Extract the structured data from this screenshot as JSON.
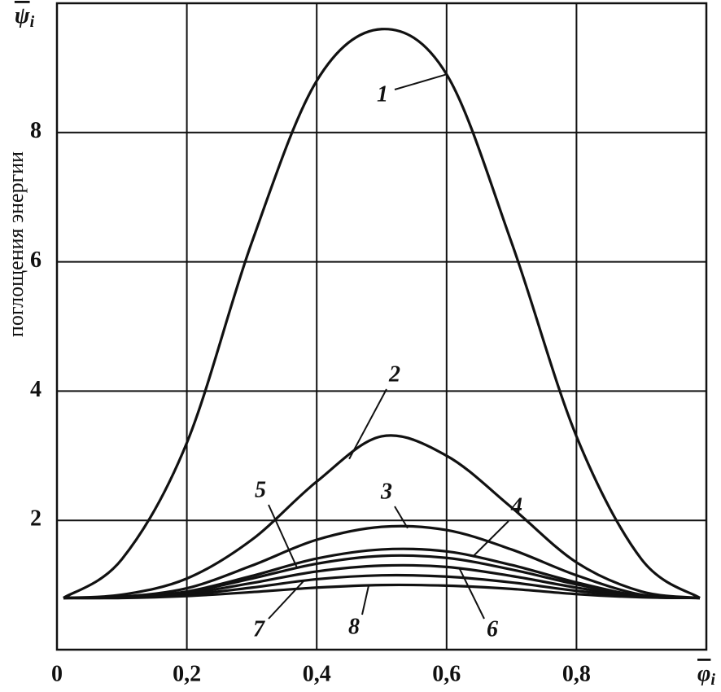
{
  "chart_data": {
    "type": "line",
    "y_symbol": "ψ",
    "y_symbol_sub": "i",
    "x_symbol": "φ",
    "x_symbol_sub": "i",
    "y_label": "поглощения энергии",
    "x": [
      0.01,
      0.1,
      0.2,
      0.3,
      0.4,
      0.5,
      0.6,
      0.7,
      0.8,
      0.9,
      0.99
    ],
    "series": [
      {
        "name": "1",
        "color": "#111111",
        "values": [
          0.8,
          1.4,
          3.2,
          6.3,
          8.8,
          9.6,
          8.9,
          6.3,
          3.3,
          1.4,
          0.8
        ]
      },
      {
        "name": "2",
        "color": "#111111",
        "values": [
          0.8,
          0.85,
          1.1,
          1.7,
          2.6,
          3.3,
          3.0,
          2.2,
          1.35,
          0.9,
          0.8
        ]
      },
      {
        "name": "3",
        "color": "#111111",
        "values": [
          0.8,
          0.82,
          0.95,
          1.3,
          1.7,
          1.9,
          1.85,
          1.55,
          1.15,
          0.85,
          0.8
        ]
      },
      {
        "name": "4",
        "color": "#111111",
        "values": [
          0.8,
          0.81,
          0.9,
          1.14,
          1.41,
          1.55,
          1.52,
          1.31,
          1.04,
          0.83,
          0.8
        ]
      },
      {
        "name": "5",
        "color": "#111111",
        "values": [
          0.8,
          0.81,
          0.89,
          1.1,
          1.33,
          1.45,
          1.42,
          1.24,
          1.01,
          0.83,
          0.8
        ]
      },
      {
        "name": "6",
        "color": "#111111",
        "values": [
          0.8,
          0.81,
          0.87,
          1.03,
          1.21,
          1.3,
          1.28,
          1.14,
          0.96,
          0.82,
          0.8
        ]
      },
      {
        "name": "7",
        "color": "#111111",
        "values": [
          0.8,
          0.81,
          0.85,
          0.96,
          1.09,
          1.15,
          1.13,
          1.04,
          0.91,
          0.82,
          0.8
        ]
      },
      {
        "name": "8",
        "color": "#111111",
        "values": [
          0.8,
          0.8,
          0.83,
          0.89,
          0.96,
          1.0,
          0.99,
          0.94,
          0.86,
          0.81,
          0.8
        ]
      }
    ],
    "xlim": [
      0,
      1
    ],
    "ylim": [
      0,
      10
    ],
    "xticks": [
      0,
      {
        "value": 0.2,
        "label": "0,2"
      },
      {
        "value": 0.4,
        "label": "0,4"
      },
      {
        "value": 0.6,
        "label": "0,6"
      },
      {
        "value": 0.8,
        "label": "0,8"
      }
    ],
    "yticks": [
      2,
      4,
      6,
      8
    ],
    "grid": true
  }
}
